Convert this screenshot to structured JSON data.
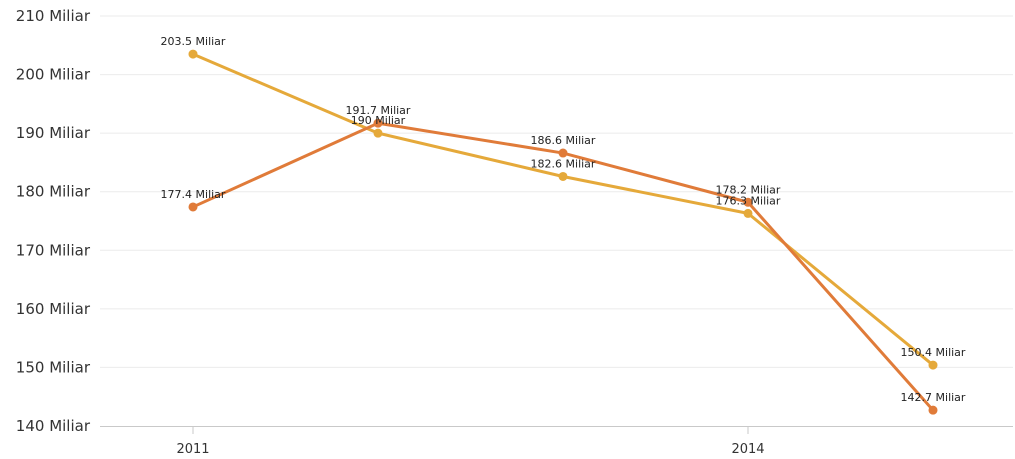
{
  "chart_data": {
    "type": "line",
    "x": [
      2011,
      2012,
      2013,
      2014,
      2015
    ],
    "x_tick_labels": [
      "2011",
      "2014"
    ],
    "x_tick_values": [
      2011,
      2014
    ],
    "y_tick_labels": [
      "140 Miliar",
      "150 Miliar",
      "160 Miliar",
      "170 Miliar",
      "180 Miliar",
      "190 Miliar",
      "200 Miliar",
      "210 Miliar"
    ],
    "ylim": [
      140,
      210
    ],
    "grid": true,
    "series": [
      {
        "color": "#e07b39",
        "values": [
          177.4,
          191.7,
          186.6,
          178.2,
          142.7
        ],
        "labels": [
          "177.4 Miliar",
          "191.7 Miliar",
          "186.6 Miliar",
          "178.2 Miliar",
          "142.7 Miliar"
        ]
      },
      {
        "color": "#e5a93a",
        "values": [
          203.5,
          190.0,
          182.6,
          176.3,
          150.4
        ],
        "labels": [
          "203.5 Miliar",
          "190 Miliar",
          "182.6 Miliar",
          "176.3 Miliar",
          "150.4 Miliar"
        ]
      }
    ]
  }
}
